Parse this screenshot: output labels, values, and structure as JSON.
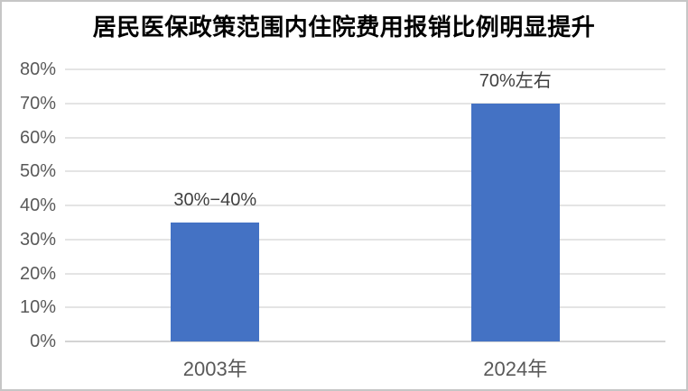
{
  "chart_data": {
    "type": "bar",
    "title": "居民医保政策范围内住院费用报销比例明显提升",
    "categories": [
      "2003年",
      "2024年"
    ],
    "values": [
      35,
      70
    ],
    "data_labels": [
      "30%−40%",
      "70%左右"
    ],
    "xlabel": "",
    "ylabel": "",
    "ylim": [
      0,
      80
    ],
    "yticks": [
      0,
      10,
      20,
      30,
      40,
      50,
      60,
      70,
      80
    ],
    "ytick_labels": [
      "0%",
      "10%",
      "20%",
      "30%",
      "40%",
      "50%",
      "60%",
      "70%",
      "80%"
    ],
    "grid": true,
    "legend": "none",
    "colors": {
      "bar": "#4472C4",
      "gridline": "#E4E4E4",
      "baseline": "#D4D4D4",
      "axis_labels": "#595959",
      "data_labels": "#404040",
      "title": "#000000",
      "frame_border": "#C6C6C6",
      "background": "#FFFFFF"
    }
  }
}
